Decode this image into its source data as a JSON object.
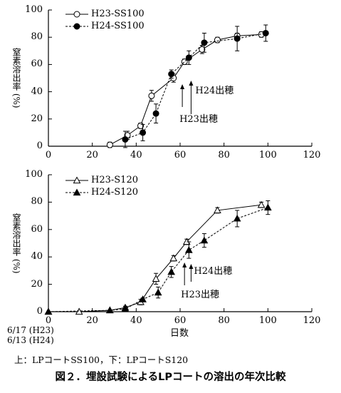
{
  "chart_data": [
    {
      "type": "line",
      "title": "",
      "xlabel": "",
      "ylabel": "窒素溶出率 (%)",
      "xlim": [
        0,
        120
      ],
      "ylim": [
        0,
        100
      ],
      "xticks": [
        0,
        20,
        40,
        60,
        80,
        100,
        120
      ],
      "yticks": [
        0,
        20,
        40,
        60,
        80,
        100
      ],
      "grid": false,
      "legend_position": "top-left",
      "series": [
        {
          "name": "H23-SS100",
          "marker": "open-circle",
          "line": "solid",
          "x": [
            28,
            36,
            42,
            47,
            57,
            62,
            70,
            77,
            86,
            97
          ],
          "y": [
            1,
            8,
            15,
            37,
            50,
            62,
            71,
            78,
            81,
            82
          ],
          "err": [
            2,
            3,
            2,
            4,
            3,
            2,
            3,
            2,
            2,
            2
          ]
        },
        {
          "name": "H24-SS100",
          "marker": "filled-circle",
          "line": "dashed",
          "x": [
            35,
            43,
            49,
            56,
            64,
            71,
            86,
            99
          ],
          "y": [
            5,
            10,
            24,
            53,
            65,
            76,
            79,
            83
          ],
          "err": [
            6,
            6,
            7,
            3,
            5,
            7,
            9,
            6
          ]
        }
      ],
      "annotations": [
        {
          "text": "H24出穂",
          "x": 65
        },
        {
          "text": "H23出穂",
          "x": 61
        }
      ]
    },
    {
      "type": "line",
      "title": "",
      "xlabel": "日数",
      "ylabel": "窒素溶出率 (%)",
      "xlim": [
        0,
        120
      ],
      "ylim": [
        0,
        100
      ],
      "xticks": [
        0,
        20,
        40,
        60,
        80,
        100,
        120
      ],
      "yticks": [
        0,
        20,
        40,
        60,
        80,
        100
      ],
      "grid": false,
      "legend_position": "top-left",
      "series": [
        {
          "name": "H23-S120",
          "marker": "open-triangle",
          "line": "solid",
          "x": [
            0,
            14,
            28,
            35,
            42,
            49,
            57,
            63,
            77,
            97
          ],
          "y": [
            0,
            0,
            1,
            3,
            7,
            24,
            39,
            51,
            74,
            78
          ],
          "err": [
            0,
            0,
            0,
            1,
            2,
            4,
            2,
            2,
            2,
            2
          ]
        },
        {
          "name": "H24-S120",
          "marker": "filled-triangle",
          "line": "dashed",
          "x": [
            0,
            28,
            35,
            43,
            50,
            56,
            64,
            71,
            86,
            100
          ],
          "y": [
            0,
            1,
            2,
            9,
            14,
            29,
            45,
            52,
            68,
            76
          ],
          "err": [
            0,
            0,
            0,
            1,
            4,
            4,
            6,
            5,
            6,
            5
          ]
        }
      ],
      "annotations": [
        {
          "text": "H24出穂",
          "x": 65
        },
        {
          "text": "H23出穂",
          "x": 62
        }
      ]
    }
  ],
  "xaxis_dates": [
    "6/17 (H23)",
    "6/13 (H24)"
  ],
  "footnote": "上：LPコートSS100，下：LPコートS120",
  "caption": "図２．埋設試験によるLPコートの溶出の年次比較"
}
